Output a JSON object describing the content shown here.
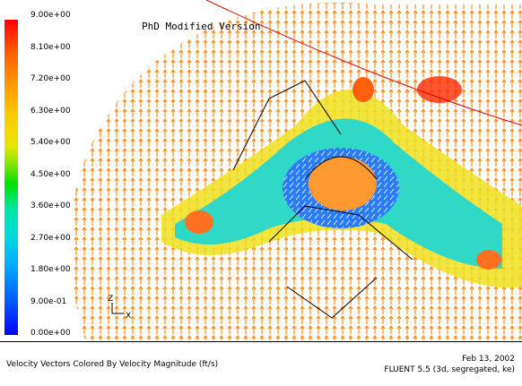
{
  "watermark": "PhD Modified Version",
  "colorbar": {
    "labels": [
      "9.00e+00",
      "8.10e+00",
      "7.20e+00",
      "6.30e+00",
      "5.40e+00",
      "4.50e+00",
      "3.60e+00",
      "2.70e+00",
      "1.80e+00",
      "9.00e-01",
      "0.00e+00"
    ]
  },
  "axes": {
    "z": "Z",
    "x": "X"
  },
  "footer": {
    "caption": "Velocity Vectors Colored By Velocity Magnitude (ft/s)",
    "date": "Feb 13, 2002",
    "version": "FLUENT 5.5 (3d, segregated, ke)"
  }
}
